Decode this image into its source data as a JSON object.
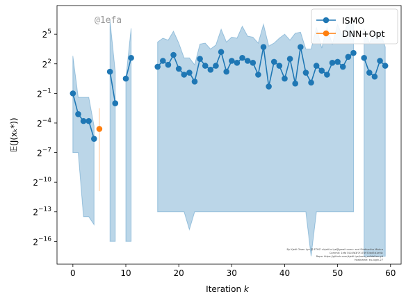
{
  "chart_data": {
    "type": "line",
    "title": "",
    "xlabel": "Iteration",
    "xlabel_var": "k",
    "ylabel": "𝔼(J(xₖ*))",
    "y_scale": "log2",
    "xlim": [
      -3,
      62
    ],
    "ylim_log2": [
      -18.3,
      7.9
    ],
    "x_ticks": [
      0,
      10,
      20,
      30,
      40,
      50,
      60
    ],
    "y_ticks_log2": [
      5,
      2,
      -1,
      -4,
      -7,
      -10,
      -13,
      -16
    ],
    "grid": false,
    "legend_position": "top-right",
    "stamp": "@1efa",
    "colors": {
      "ISMO": "#1f77b4",
      "DNN+Opt": "#ff7f0e",
      "band": "#1f77b4"
    },
    "series": [
      {
        "name": "ISMO",
        "segments": [
          {
            "x": [
              0,
              1,
              2,
              3,
              4
            ],
            "log2_y": [
              -1.0,
              -3.1,
              -3.8,
              -3.8,
              -5.6
            ],
            "band_log2_low": [
              -7.0,
              -7.0,
              -13.5,
              -13.5,
              -14.3
            ],
            "band_log2_high": [
              2.8,
              -1.4,
              -1.4,
              -1.4,
              -4.3
            ]
          },
          {
            "x": [
              7,
              8
            ],
            "log2_y": [
              1.2,
              -2.0
            ],
            "band_log2_low": [
              -16.0,
              -16.0
            ],
            "band_log2_high": [
              6.4,
              1.2
            ]
          },
          {
            "x": [
              10,
              11
            ],
            "log2_y": [
              0.5,
              2.6
            ],
            "band_log2_low": [
              -16.0,
              -16.0
            ],
            "band_log2_high": [
              0.5,
              5.6
            ]
          },
          {
            "x": [
              16,
              17,
              18,
              19,
              20,
              21,
              22,
              23,
              24,
              25,
              26,
              27,
              28,
              29,
              30,
              31,
              32,
              33,
              34,
              35,
              36,
              37,
              38,
              39,
              40,
              41,
              42,
              43,
              44,
              45,
              46,
              47,
              48,
              49,
              50,
              51,
              52,
              53
            ],
            "log2_y": [
              1.7,
              2.3,
              1.9,
              2.9,
              1.5,
              0.9,
              1.1,
              0.2,
              2.5,
              1.8,
              1.4,
              1.8,
              3.2,
              1.2,
              2.3,
              2.1,
              2.6,
              2.3,
              2.1,
              0.9,
              3.7,
              -0.3,
              2.2,
              1.8,
              0.5,
              2.5,
              -0.0,
              3.7,
              1.1,
              0.1,
              1.8,
              1.3,
              0.9,
              2.1,
              2.2,
              1.7,
              2.7,
              3.1
            ],
            "band_log2_low": [
              -13.0,
              -13.0,
              -13.0,
              -13.0,
              -13.0,
              -13.0,
              -14.8,
              -13.0,
              -13.0,
              -13.0,
              -13.0,
              -13.0,
              -13.0,
              -13.0,
              -13.0,
              -13.0,
              -13.0,
              -13.0,
              -13.0,
              -13.0,
              -13.0,
              -13.0,
              -13.0,
              -13.0,
              -13.0,
              -13.0,
              -13.0,
              -13.0,
              -13.0,
              -17.5,
              -13.0,
              -13.0,
              -13.0,
              -13.0,
              -13.0,
              -13.0,
              -13.0,
              -13.0
            ],
            "band_log2_high": [
              4.2,
              4.6,
              4.4,
              5.3,
              4.1,
              2.6,
              2.6,
              1.9,
              4.0,
              4.1,
              3.5,
              3.9,
              5.5,
              4.2,
              4.7,
              4.6,
              5.8,
              4.8,
              4.7,
              4.1,
              6.0,
              3.8,
              4.1,
              4.6,
              5.0,
              4.4,
              5.1,
              5.2,
              3.5,
              3.5,
              5.7,
              3.6,
              5.7,
              4.0,
              6.0,
              4.7,
              6.2,
              6.3
            ]
          },
          {
            "x": [
              55,
              56,
              57,
              58,
              59
            ],
            "log2_y": [
              2.6,
              1.1,
              0.7,
              2.3,
              1.8
            ],
            "band_log2_low": [
              -17.5,
              -17.5,
              -17.5,
              -17.5,
              -17.5
            ],
            "band_log2_high": [
              5.6,
              4.1,
              5.1,
              5.3,
              3.7
            ]
          }
        ]
      },
      {
        "name": "DNN+Opt",
        "x": [
          5
        ],
        "log2_y": [
          -4.6
        ],
        "errorbar_log2": [
          [
            -10.9,
            -2.5
          ]
        ]
      }
    ],
    "annotation_lines": [
      "By Kjetil Olsen Lye @ ETHZ <kjetil.o.lye@gmail.com> and Siddhartha Mishra",
      "Commit: 1efa7414fb3f7f178970dd5d1ef4c",
      "Repo: https://github.com/kjetil-lye/ismo_validation.git",
      "Hostname: eu-login-27"
    ]
  }
}
